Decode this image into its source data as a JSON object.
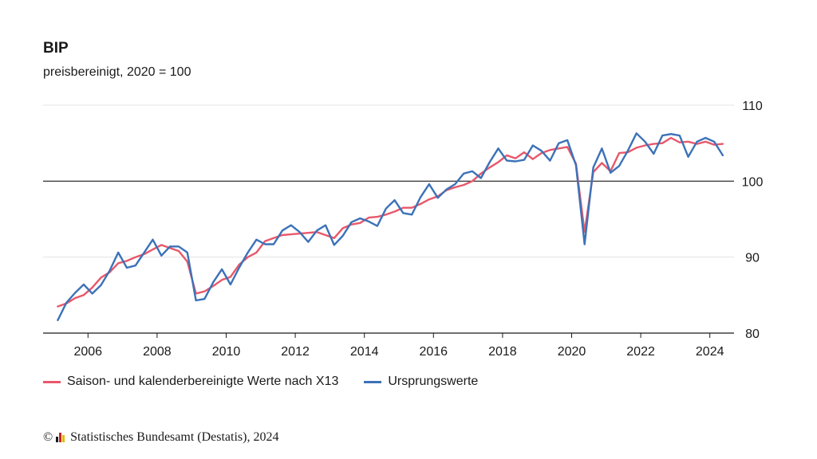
{
  "chart_data": {
    "type": "line",
    "title": "BIP",
    "subtitle": "preisbereinigt, 2020 = 100",
    "ylim": [
      80,
      110
    ],
    "xlim": [
      2004.7,
      2024.7
    ],
    "y_ticks": [
      "80",
      "90",
      "100",
      "110"
    ],
    "x_ticks": [
      "2006",
      "2008",
      "2010",
      "2012",
      "2014",
      "2016",
      "2018",
      "2020",
      "2022",
      "2024"
    ],
    "reference_line": 100,
    "grid": true,
    "legend_position": "bottom-left",
    "series": [
      {
        "name": "Saison- und kalenderbereinigte Werte nach X13",
        "color": "#e8586a",
        "x": [
          2005.125,
          2005.375,
          2005.625,
          2005.875,
          2006.125,
          2006.375,
          2006.625,
          2006.875,
          2007.125,
          2007.375,
          2007.625,
          2007.875,
          2008.125,
          2008.375,
          2008.625,
          2008.875,
          2009.125,
          2009.375,
          2009.625,
          2009.875,
          2010.125,
          2010.375,
          2010.625,
          2010.875,
          2011.125,
          2011.375,
          2011.625,
          2011.875,
          2012.125,
          2012.375,
          2012.625,
          2012.875,
          2013.125,
          2013.375,
          2013.625,
          2013.875,
          2014.125,
          2014.375,
          2014.625,
          2014.875,
          2015.125,
          2015.375,
          2015.625,
          2015.875,
          2016.125,
          2016.375,
          2016.625,
          2016.875,
          2017.125,
          2017.375,
          2017.625,
          2017.875,
          2018.125,
          2018.375,
          2018.625,
          2018.875,
          2019.125,
          2019.375,
          2019.625,
          2019.875,
          2020.125,
          2020.375,
          2020.625,
          2020.875,
          2021.125,
          2021.375,
          2021.625,
          2021.875,
          2022.125,
          2022.375,
          2022.625,
          2022.875,
          2023.125,
          2023.375,
          2023.625,
          2023.875,
          2024.125,
          2024.375
        ],
        "values": [
          83.5,
          83.9,
          84.6,
          85.0,
          86.0,
          87.3,
          88.0,
          89.2,
          89.5,
          90.0,
          90.4,
          91.0,
          91.6,
          91.2,
          90.8,
          89.4,
          85.2,
          85.5,
          86.2,
          87.0,
          87.4,
          89.0,
          90.0,
          90.6,
          92.1,
          92.5,
          92.9,
          93.0,
          93.1,
          93.2,
          93.3,
          92.9,
          92.5,
          93.8,
          94.3,
          94.5,
          95.2,
          95.3,
          95.6,
          96.0,
          96.5,
          96.5,
          97.0,
          97.6,
          98.0,
          98.8,
          99.2,
          99.5,
          100.0,
          101.0,
          101.8,
          102.5,
          103.4,
          103.0,
          103.8,
          102.9,
          103.7,
          104.1,
          104.3,
          104.5,
          102.3,
          93.3,
          101.2,
          102.4,
          101.3,
          103.7,
          103.8,
          104.4,
          104.7,
          104.9,
          105.0,
          105.7,
          105.1,
          105.2,
          104.9,
          105.2,
          104.8,
          104.9
        ]
      },
      {
        "name": "Ursprungswerte",
        "color": "#3b72b8",
        "x": [
          2005.125,
          2005.375,
          2005.625,
          2005.875,
          2006.125,
          2006.375,
          2006.625,
          2006.875,
          2007.125,
          2007.375,
          2007.625,
          2007.875,
          2008.125,
          2008.375,
          2008.625,
          2008.875,
          2009.125,
          2009.375,
          2009.625,
          2009.875,
          2010.125,
          2010.375,
          2010.625,
          2010.875,
          2011.125,
          2011.375,
          2011.625,
          2011.875,
          2012.125,
          2012.375,
          2012.625,
          2012.875,
          2013.125,
          2013.375,
          2013.625,
          2013.875,
          2014.125,
          2014.375,
          2014.625,
          2014.875,
          2015.125,
          2015.375,
          2015.625,
          2015.875,
          2016.125,
          2016.375,
          2016.625,
          2016.875,
          2017.125,
          2017.375,
          2017.625,
          2017.875,
          2018.125,
          2018.375,
          2018.625,
          2018.875,
          2019.125,
          2019.375,
          2019.625,
          2019.875,
          2020.125,
          2020.375,
          2020.625,
          2020.875,
          2021.125,
          2021.375,
          2021.625,
          2021.875,
          2022.125,
          2022.375,
          2022.625,
          2022.875,
          2023.125,
          2023.375,
          2023.625,
          2023.875,
          2024.125,
          2024.375
        ],
        "values": [
          81.7,
          84.0,
          85.3,
          86.4,
          85.2,
          86.3,
          88.2,
          90.6,
          88.6,
          88.9,
          90.6,
          92.3,
          90.2,
          91.4,
          91.4,
          90.6,
          84.3,
          84.5,
          86.7,
          88.4,
          86.4,
          88.6,
          90.6,
          92.3,
          91.7,
          91.7,
          93.5,
          94.2,
          93.3,
          92.0,
          93.5,
          94.2,
          91.6,
          92.8,
          94.6,
          95.1,
          94.7,
          94.1,
          96.4,
          97.5,
          95.8,
          95.6,
          97.9,
          99.6,
          97.8,
          98.9,
          99.6,
          101.0,
          101.3,
          100.4,
          102.5,
          104.3,
          102.7,
          102.6,
          102.8,
          104.7,
          104.0,
          102.7,
          105.0,
          105.4,
          102.1,
          91.7,
          101.8,
          104.3,
          101.1,
          102.0,
          104.0,
          106.3,
          105.2,
          103.6,
          106.0,
          106.2,
          106.0,
          103.2,
          105.2,
          105.7,
          105.2,
          103.4
        ]
      }
    ]
  },
  "legend": {
    "items": [
      {
        "label": "Saison- und kalenderbereinigte Werte nach X13",
        "color": "#e8586a"
      },
      {
        "label": "Ursprungswerte",
        "color": "#3b72b8"
      }
    ]
  },
  "source": {
    "copyright_symbol": "©",
    "text": "Statistisches Bundesamt (Destatis), 2024",
    "logo_colors": [
      "#1a1a1a",
      "#d0202a",
      "#e6b800"
    ]
  }
}
